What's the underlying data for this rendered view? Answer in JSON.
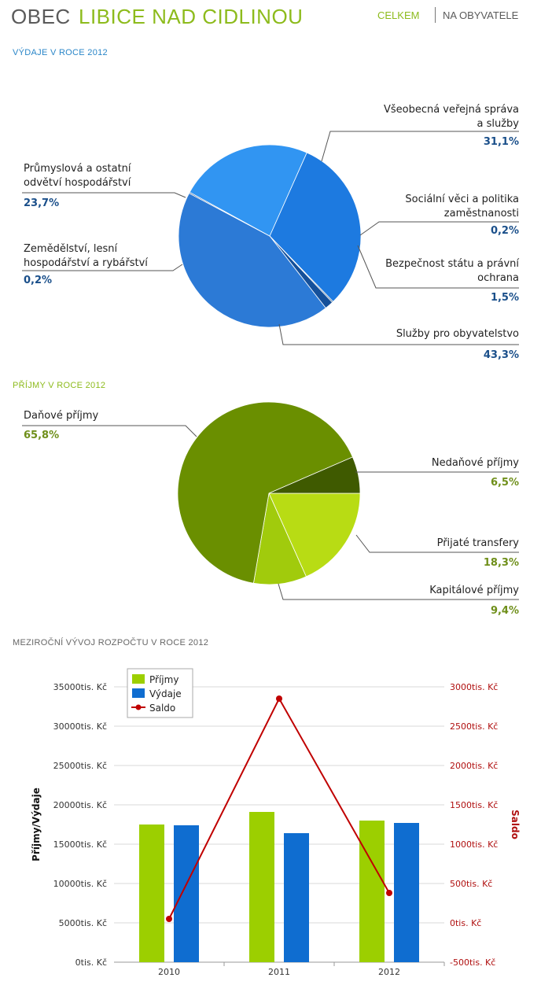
{
  "header": {
    "title_prefix": "OBEC",
    "title_main": "LIBICE NAD CIDLINOU",
    "nav_total": "CELKEM",
    "nav_per_capita": "NA OBYVATELE"
  },
  "sections": {
    "expenses": "VÝDAJE V ROCE 2012",
    "income": "PŘÍJMY V ROCE 2012",
    "trend": "MEZIROČNÍ VÝVOJ ROZPOČTU V ROCE 2012"
  },
  "colors": {
    "expense_slices": [
      "#1d7ae0",
      "#0e3f72",
      "#15509a",
      "#2c7ad6",
      "#1d4f8c",
      "#3195f2"
    ],
    "income_slices": [
      "#b8dc14",
      "#a1cb0c",
      "#6a8f00",
      "#3f5a00"
    ],
    "prijmy": "#9ccf00",
    "vydaje": "#0f6dd0",
    "saldo": "#c00000",
    "expense_label": "#1a4f8a",
    "income_label": "#6f8f1a"
  },
  "chart_data": [
    {
      "type": "pie",
      "title": "VÝDAJE V ROCE 2012",
      "slices": [
        {
          "label": "Všeobecná veřejná správa a služby",
          "lines": [
            "Všeobecná veřejná správa",
            "a služby"
          ],
          "value": 31.1,
          "pct": "31,1%"
        },
        {
          "label": "Sociální věci a politika zaměstnanosti",
          "lines": [
            "Sociální věci a politika",
            "zaměstnanosti"
          ],
          "value": 0.2,
          "pct": "0,2%"
        },
        {
          "label": "Bezpečnost státu a právní ochrana",
          "lines": [
            "Bezpečnost státu a právní",
            "ochrana"
          ],
          "value": 1.5,
          "pct": "1,5%"
        },
        {
          "label": "Služby pro obyvatelstvo",
          "lines": [
            "Služby pro obyvatelstvo"
          ],
          "value": 43.3,
          "pct": "43,3%"
        },
        {
          "label": "Zemědělství, lesní hospodářství a rybářství",
          "lines": [
            "Zemědělství, lesní",
            "hospodářství a rybářství"
          ],
          "value": 0.2,
          "pct": "0,2%"
        },
        {
          "label": "Průmyslová a ostatní odvětví hospodářství",
          "lines": [
            "Průmyslová a ostatní",
            "odvětví hospodářství"
          ],
          "value": 23.7,
          "pct": "23,7%"
        }
      ]
    },
    {
      "type": "pie",
      "title": "PŘÍJMY V ROCE 2012",
      "slices": [
        {
          "label": "Přijaté transfery",
          "lines": [
            "Přijaté transfery"
          ],
          "value": 18.3,
          "pct": "18,3%"
        },
        {
          "label": "Kapitálové příjmy",
          "lines": [
            "Kapitálové příjmy"
          ],
          "value": 9.4,
          "pct": "9,4%"
        },
        {
          "label": "Daňové příjmy",
          "lines": [
            "Daňové příjmy"
          ],
          "value": 65.8,
          "pct": "65,8%"
        },
        {
          "label": "Nedaňové příjmy",
          "lines": [
            "Nedaňové příjmy"
          ],
          "value": 6.5,
          "pct": "6,5%"
        }
      ]
    },
    {
      "type": "bar",
      "title": "MEZIROČNÍ VÝVOJ ROZPOČTU V ROCE 2012",
      "categories": [
        "2010",
        "2011",
        "2012"
      ],
      "series": [
        {
          "name": "Příjmy",
          "values": [
            17500,
            19100,
            18000
          ]
        },
        {
          "name": "Výdaje",
          "values": [
            17400,
            16400,
            17700
          ]
        }
      ],
      "line_series": {
        "name": "Saldo",
        "values": [
          50,
          2850,
          380
        ]
      },
      "ylabel": "Příjmy/Výdaje",
      "y2label": "Saldo",
      "ylim": [
        0,
        35000
      ],
      "y2lim": [
        -500,
        3000
      ],
      "yticks": [
        "0tis. Kč",
        "5000tis. Kč",
        "10000tis. Kč",
        "15000tis. Kč",
        "20000tis. Kč",
        "25000tis. Kč",
        "30000tis. Kč",
        "35000tis. Kč"
      ],
      "y2ticks": [
        "-500tis. Kč",
        "0tis. Kč",
        "500tis. Kč",
        "1000tis. Kč",
        "1500tis. Kč",
        "2000tis. Kč",
        "2500tis. Kč",
        "3000tis. Kč"
      ],
      "legend": "top-left",
      "grid": true
    }
  ]
}
